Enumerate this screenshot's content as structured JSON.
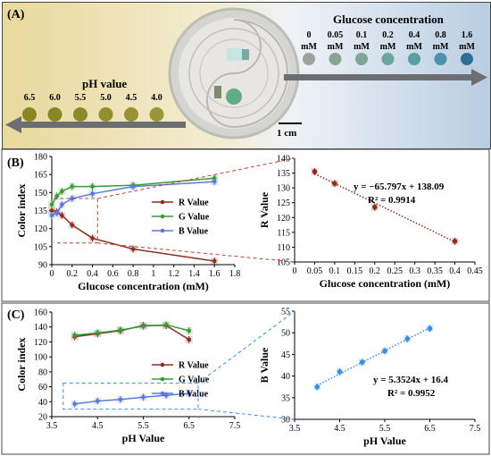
{
  "panel_a": {
    "label": "(A)",
    "glucose_title": "Glucose concentration",
    "glucose_levels": [
      "0",
      "0.05",
      "0.1",
      "0.2",
      "0.4",
      "0.8",
      "1.6"
    ],
    "glucose_unit": "mM",
    "glucose_colors": [
      "#a2a29b",
      "#8ca392",
      "#7fa696",
      "#6da59d",
      "#5a9ea6",
      "#4a93aa",
      "#2e6f98"
    ],
    "ph_title": "pH value",
    "ph_levels": [
      "6.5",
      "6.0",
      "5.5",
      "5.0",
      "4.5",
      "4.0"
    ],
    "ph_colors": [
      "#8a8622",
      "#8b8624",
      "#8e8a2a",
      "#928f30",
      "#979336",
      "#9a9639"
    ],
    "scale_label": "1 cm"
  },
  "chart_data": [
    {
      "panel": "(B)",
      "type": "line",
      "xlabel": "Glucose concentration (mM)",
      "ylabel": "Color index",
      "xlim": [
        0,
        1.8
      ],
      "ylim": [
        90,
        180
      ],
      "xticks": [
        0,
        0.2,
        0.4,
        0.6,
        0.8,
        1,
        1.2,
        1.4,
        1.6,
        1.8
      ],
      "yticks": [
        90,
        105,
        120,
        135,
        150,
        165,
        180
      ],
      "x": [
        0,
        0.05,
        0.1,
        0.2,
        0.4,
        0.8,
        1.6
      ],
      "series": [
        {
          "name": "R Value",
          "color": "#8b2e1c",
          "values": [
            135,
            134,
            131,
            123,
            112,
            103,
            93
          ]
        },
        {
          "name": "G Value",
          "color": "#3a9a3a",
          "values": [
            140,
            147,
            151,
            155,
            155,
            156,
            162
          ]
        },
        {
          "name": "B Value",
          "color": "#5a79d8",
          "values": [
            131,
            133,
            140,
            145,
            149,
            155,
            159
          ]
        }
      ],
      "legend_position": "center-right"
    },
    {
      "panel": "(B)-inset",
      "type": "scatter",
      "xlabel": "Glucose concentration (mM)",
      "ylabel": "R Value",
      "xlim": [
        0,
        0.45
      ],
      "ylim": [
        105,
        140
      ],
      "xticks": [
        0,
        0.05,
        0.1,
        0.15,
        0.2,
        0.25,
        0.3,
        0.35,
        0.4,
        0.45
      ],
      "yticks": [
        105,
        110,
        115,
        120,
        125,
        130,
        135,
        140
      ],
      "x": [
        0.05,
        0.1,
        0.2,
        0.4
      ],
      "series": [
        {
          "name": "",
          "color": "#8b2e1c",
          "values": [
            135.5,
            131.5,
            123.5,
            112
          ]
        }
      ],
      "fit": {
        "slope": -65.797,
        "intercept": 138.09
      },
      "equation": "y = −65.797x + 138.09",
      "r2": "R² = 0.9914"
    },
    {
      "panel": "(C)",
      "type": "line",
      "xlabel": "pH Value",
      "ylabel": "Color index",
      "xlim": [
        3.5,
        7.5
      ],
      "ylim": [
        20,
        160
      ],
      "xticks": [
        3.5,
        4.5,
        5.5,
        6.5,
        7.5
      ],
      "yticks": [
        20,
        40,
        60,
        80,
        100,
        120,
        140,
        160
      ],
      "x": [
        4.0,
        4.5,
        5.0,
        5.5,
        6.0,
        6.5
      ],
      "series": [
        {
          "name": "R Value",
          "color": "#8b2e1c",
          "values": [
            127,
            131,
            135,
            142,
            142,
            123
          ]
        },
        {
          "name": "G Value",
          "color": "#3a9a3a",
          "values": [
            129,
            132,
            136,
            141,
            143,
            135
          ]
        },
        {
          "name": "B Value",
          "color": "#5a79d8",
          "values": [
            37,
            41,
            43,
            46,
            48.5,
            51
          ]
        }
      ],
      "legend_position": "center-right"
    },
    {
      "panel": "(C)-inset",
      "type": "scatter",
      "xlabel": "pH Value",
      "ylabel": "B Value",
      "xlim": [
        3.5,
        7.5
      ],
      "ylim": [
        30,
        55
      ],
      "xticks": [
        3.5,
        4.5,
        5.5,
        6.5,
        7.5
      ],
      "yticks": [
        30,
        35,
        40,
        45,
        50,
        55
      ],
      "x": [
        4.0,
        4.5,
        5.0,
        5.5,
        6.0,
        6.5
      ],
      "series": [
        {
          "name": "",
          "color": "#3b8fe0",
          "values": [
            37.5,
            41,
            43.2,
            45.8,
            48.6,
            51
          ]
        }
      ],
      "fit": {
        "slope": 5.3524,
        "intercept": 16.4
      },
      "equation": "y = 5.3524x + 16.4",
      "r2": "R² = 0.9952"
    }
  ],
  "panel_b_label": "(B)",
  "panel_c_label": "(C)"
}
